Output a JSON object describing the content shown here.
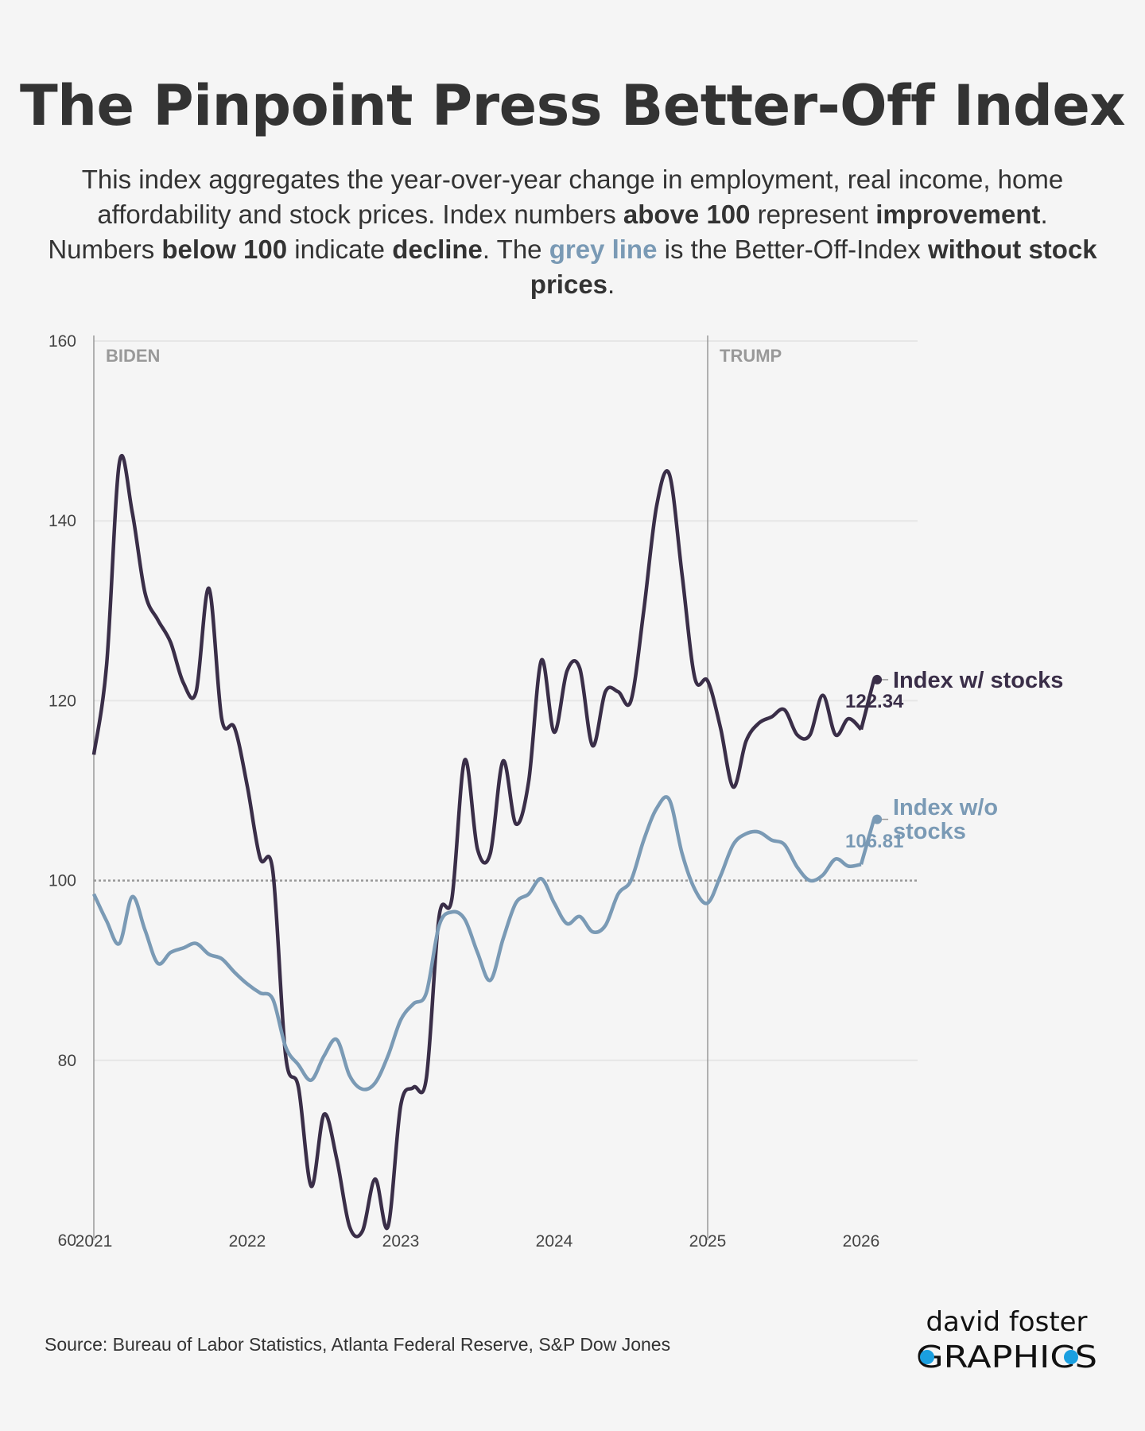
{
  "title": "The Pinpoint Press Better-Off Index",
  "subtitle": [
    {
      "t": "This index aggregates the year-over-year change in employment, real income, home affordability and stock prices. Index numbers ",
      "s": ""
    },
    {
      "t": "above 100",
      "s": "b"
    },
    {
      "t": " represent ",
      "s": ""
    },
    {
      "t": "improvement",
      "s": "b"
    },
    {
      "t": ". Numbers ",
      "s": ""
    },
    {
      "t": "below 100",
      "s": "b"
    },
    {
      "t": " indicate ",
      "s": ""
    },
    {
      "t": "decline",
      "s": "b"
    },
    {
      "t": ". The ",
      "s": ""
    },
    {
      "t": "grey line",
      "s": "hl"
    },
    {
      "t": " is the Better-Off-Index ",
      "s": ""
    },
    {
      "t": "without stock prices",
      "s": "b"
    },
    {
      "t": ".",
      "s": ""
    }
  ],
  "source": "Source: Bureau of Labor Statistics, Atlanta Federal Reserve, S&P Dow Jones",
  "logo": {
    "line1": "david foster",
    "line2": "GRAPHICS",
    "accent": "#1a9fe0"
  },
  "chart_data": {
    "type": "line",
    "title": "",
    "xlabel": "",
    "ylabel": "",
    "xlim": [
      2021,
      2026.4
    ],
    "ylim": [
      60,
      160
    ],
    "yticks": [
      60,
      80,
      100,
      120,
      140,
      160
    ],
    "xticks": [
      "2021",
      "2022",
      "2023",
      "2024",
      "2025",
      "2026"
    ],
    "grid": true,
    "reference_line": {
      "y": 100,
      "style": "dotted"
    },
    "annotations": [
      {
        "x": 2021,
        "label": "BIDEN"
      },
      {
        "x": 2025,
        "label": "TRUMP"
      }
    ],
    "x_start": "2021-01",
    "x_step": "month",
    "series": [
      {
        "name": "Index w/ stocks",
        "color": "#3a2e48",
        "end_label": "122.34",
        "values": [
          114,
          124,
          146.5,
          141,
          132,
          129,
          126.5,
          122,
          121,
          132.5,
          118,
          117,
          110.5,
          102.5,
          101,
          80.5,
          77,
          66,
          74,
          69,
          61.5,
          61,
          66.8,
          61.5,
          75,
          77,
          78,
          96,
          98,
          113.4,
          103.5,
          103,
          113.3,
          106.3,
          111,
          124.5,
          116.5,
          123.3,
          123.6,
          115,
          121,
          121,
          120,
          130,
          141.6,
          145.2,
          134,
          122.5,
          122.2,
          117,
          110.4,
          115.5,
          117.5,
          118.2,
          119,
          116.2,
          116.2,
          120.6,
          116.2,
          118,
          116.8,
          122.34
        ]
      },
      {
        "name": "Index w/o stocks",
        "color": "#7a9ab5",
        "end_label": "106.81",
        "values": [
          98.5,
          95.5,
          93,
          98.2,
          94.5,
          90.8,
          92,
          92.5,
          93,
          91.8,
          91.3,
          89.8,
          88.5,
          87.5,
          86.8,
          81.5,
          79.5,
          77.8,
          80.5,
          82.3,
          78.3,
          76.8,
          77.5,
          80.5,
          84.5,
          86.3,
          87.5,
          95,
          96.5,
          95.7,
          92,
          88.9,
          93.5,
          97.5,
          98.5,
          100.2,
          97.5,
          95.2,
          96,
          94.3,
          95,
          98.5,
          100,
          104.5,
          108,
          109,
          103,
          99,
          97.5,
          100.5,
          104,
          105.2,
          105.4,
          104.5,
          104,
          101.5,
          100,
          100.6,
          102.4,
          101.6,
          101.8,
          106.81
        ]
      }
    ]
  }
}
